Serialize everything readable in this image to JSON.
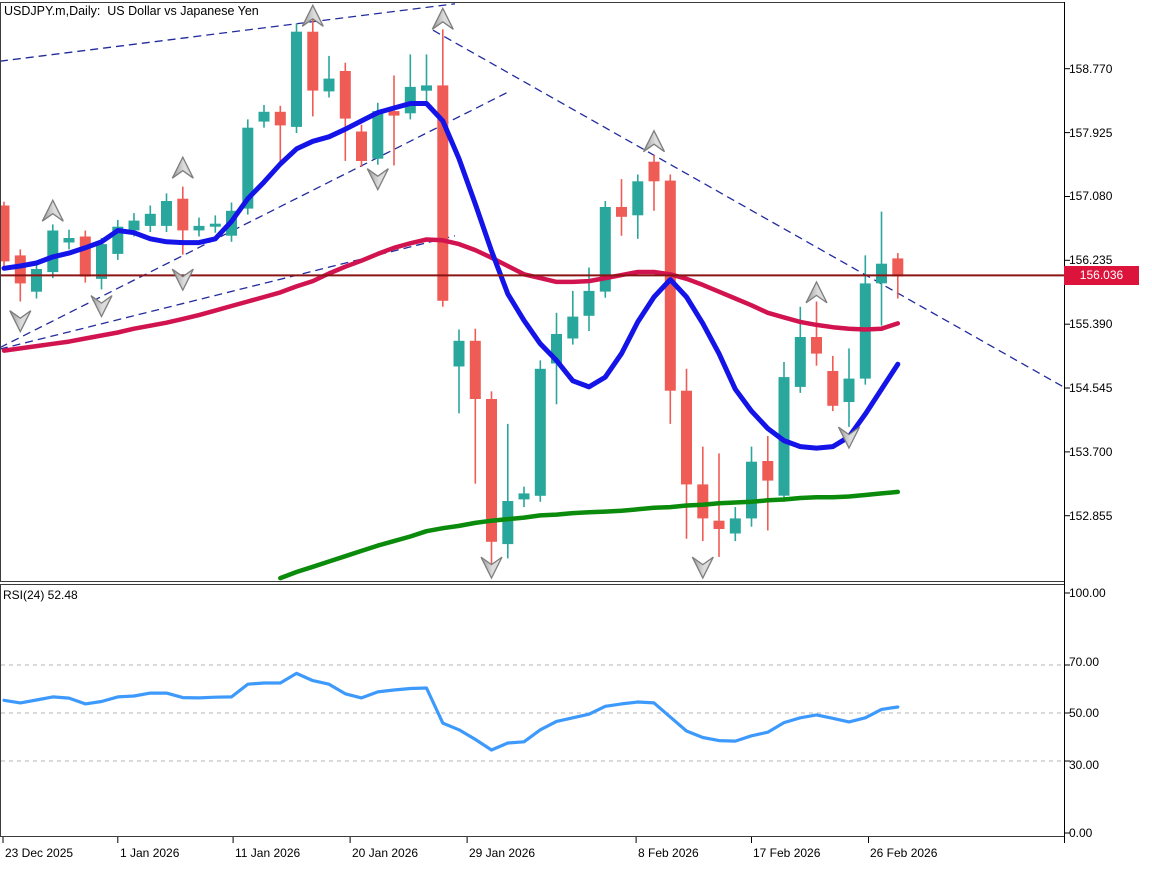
{
  "window": {
    "title": "USDJPY.m,Daily:  US Dollar vs Japanese Yen"
  },
  "colors": {
    "bull": "#2aa79c",
    "bear": "#ef5b55",
    "ma_blue": "#1413e8",
    "ma_red": "#d1144f",
    "ma_green": "#0b8b0b",
    "rsi_line": "#3d9afc",
    "trendline": "#222b9e",
    "price_line": "#8b1414",
    "badge_bg": "#dc143c",
    "grid": "#c4c4c4",
    "border": "#3c3c3c",
    "arrow_fill_light": "#dcdcdc",
    "arrow_fill_dark": "#9a9a9a",
    "arrow_stroke": "#7e7e7e"
  },
  "price_axis": {
    "tick_labels": [
      "158.770",
      "157.925",
      "157.080",
      "156.235",
      "155.390",
      "154.545",
      "153.700",
      "152.855"
    ],
    "tick_prices": [
      158.77,
      157.925,
      157.08,
      156.235,
      155.39,
      154.545,
      153.7,
      152.855
    ],
    "current_price": 156.036,
    "current_price_label": "156.036"
  },
  "date_axis": {
    "labels": [
      "23 Dec 2025",
      "1 Jan 2026",
      "11 Jan 2026",
      "20 Jan 2026",
      "29 Jan 2026",
      "8 Feb 2026",
      "17 Feb 2026",
      "26 Feb 2026"
    ],
    "tick_bars": [
      -0.06,
      7,
      14.1,
      21.3,
      28.5,
      38.9,
      46,
      53.2
    ]
  },
  "rsi_pane": {
    "label": "RSI(24) 52.48",
    "tick_labels": [
      "100.00",
      "70.00",
      "50.00",
      "30.00",
      "0.00"
    ],
    "tick_values": [
      100,
      70,
      50,
      30,
      0
    ]
  },
  "chart_data": [
    {
      "type": "candlestick",
      "title": "USDJPY.m Daily",
      "ylim": [
        152.02,
        159.64
      ],
      "candles": [
        [
          156.96,
          157.01,
          156.15,
          156.22
        ],
        [
          156.3,
          156.38,
          155.69,
          155.93
        ],
        [
          155.82,
          156.19,
          155.73,
          156.12
        ],
        [
          156.08,
          156.71,
          156.0,
          156.63
        ],
        [
          156.47,
          156.64,
          156.38,
          156.53
        ],
        [
          156.55,
          156.63,
          155.94,
          156.02
        ],
        [
          155.99,
          156.53,
          155.85,
          156.45
        ],
        [
          156.32,
          156.77,
          156.24,
          156.68
        ],
        [
          156.63,
          156.86,
          156.55,
          156.76
        ],
        [
          156.69,
          156.96,
          156.61,
          156.85
        ],
        [
          156.69,
          157.12,
          156.61,
          157.02
        ],
        [
          157.05,
          157.21,
          156.31,
          156.63
        ],
        [
          156.63,
          156.8,
          156.55,
          156.69
        ],
        [
          156.68,
          156.83,
          156.6,
          156.72
        ],
        [
          156.56,
          157.0,
          156.48,
          156.89
        ],
        [
          156.92,
          158.1,
          156.84,
          157.99
        ],
        [
          158.07,
          158.29,
          157.99,
          158.2
        ],
        [
          158.2,
          158.28,
          157.54,
          158.02
        ],
        [
          158.0,
          159.37,
          157.92,
          159.26
        ],
        [
          159.26,
          159.51,
          158.14,
          158.48
        ],
        [
          158.47,
          158.94,
          158.39,
          158.64
        ],
        [
          158.74,
          158.85,
          157.55,
          158.11
        ],
        [
          157.94,
          158.03,
          157.47,
          157.55
        ],
        [
          157.58,
          158.32,
          157.5,
          158.21
        ],
        [
          158.21,
          158.68,
          157.49,
          158.15
        ],
        [
          158.18,
          158.96,
          158.1,
          158.53
        ],
        [
          158.48,
          158.96,
          158.31,
          158.55
        ],
        [
          158.55,
          159.29,
          155.62,
          155.7
        ],
        [
          154.83,
          155.32,
          154.21,
          155.17
        ],
        [
          155.17,
          155.33,
          153.28,
          154.4
        ],
        [
          154.4,
          154.5,
          152.11,
          152.51
        ],
        [
          152.48,
          154.07,
          152.29,
          153.05
        ],
        [
          153.07,
          153.24,
          152.97,
          153.15
        ],
        [
          153.12,
          154.91,
          153.04,
          154.8
        ],
        [
          154.87,
          155.54,
          154.33,
          155.26
        ],
        [
          155.2,
          155.83,
          155.12,
          155.49
        ],
        [
          155.5,
          156.14,
          155.3,
          155.83
        ],
        [
          155.82,
          157.02,
          155.74,
          156.94
        ],
        [
          156.94,
          157.31,
          156.56,
          156.81
        ],
        [
          156.83,
          157.37,
          156.52,
          157.28
        ],
        [
          157.54,
          157.63,
          156.89,
          157.28
        ],
        [
          157.29,
          157.37,
          154.07,
          154.51
        ],
        [
          154.51,
          154.8,
          152.55,
          153.27
        ],
        [
          153.27,
          153.77,
          152.52,
          152.82
        ],
        [
          152.79,
          153.68,
          152.31,
          152.68
        ],
        [
          152.62,
          152.97,
          152.52,
          152.82
        ],
        [
          152.82,
          153.77,
          152.71,
          153.57
        ],
        [
          153.58,
          153.91,
          152.66,
          153.32
        ],
        [
          153.12,
          154.89,
          153.04,
          154.69
        ],
        [
          154.56,
          155.62,
          154.48,
          155.22
        ],
        [
          155.22,
          155.69,
          154.84,
          155.0
        ],
        [
          154.77,
          154.97,
          154.24,
          154.31
        ],
        [
          154.36,
          155.07,
          154.03,
          154.67
        ],
        [
          154.67,
          156.3,
          154.59,
          155.93
        ],
        [
          155.93,
          156.88,
          155.37,
          156.19
        ],
        [
          156.26,
          156.33,
          155.73,
          156.02
        ]
      ],
      "series": [
        {
          "name": "ma-fast-blue",
          "values": [
            156.13,
            156.16,
            156.2,
            156.28,
            156.33,
            156.4,
            156.48,
            156.63,
            156.6,
            156.52,
            156.48,
            156.47,
            156.47,
            156.52,
            156.75,
            157.05,
            157.27,
            157.51,
            157.71,
            157.81,
            157.87,
            157.97,
            158.08,
            158.19,
            158.25,
            158.31,
            158.31,
            158.08,
            157.58,
            156.98,
            156.36,
            155.79,
            155.44,
            155.13,
            154.91,
            154.64,
            154.56,
            154.69,
            155.0,
            155.42,
            155.75,
            155.98,
            155.75,
            155.4,
            155.0,
            154.53,
            154.24,
            154.01,
            153.85,
            153.77,
            153.75,
            153.77,
            153.9,
            154.2,
            154.53,
            154.86
          ]
        },
        {
          "name": "ma-mid-red",
          "values": [
            155.04,
            155.07,
            155.1,
            155.13,
            155.16,
            155.2,
            155.24,
            155.28,
            155.33,
            155.37,
            155.41,
            155.46,
            155.51,
            155.57,
            155.63,
            155.69,
            155.75,
            155.81,
            155.89,
            155.96,
            156.06,
            156.15,
            156.23,
            156.32,
            156.4,
            156.46,
            156.51,
            156.5,
            156.45,
            156.37,
            156.27,
            156.16,
            156.05,
            156.0,
            155.95,
            155.95,
            155.96,
            156.0,
            156.04,
            156.08,
            156.08,
            156.05,
            155.99,
            155.91,
            155.82,
            155.73,
            155.64,
            155.54,
            155.48,
            155.42,
            155.38,
            155.35,
            155.33,
            155.32,
            155.33,
            155.4
          ]
        },
        {
          "name": "ma-slow-green",
          "values": [
            null,
            null,
            null,
            null,
            null,
            null,
            null,
            null,
            null,
            null,
            null,
            null,
            null,
            null,
            null,
            null,
            null,
            152.03,
            152.11,
            152.18,
            152.25,
            152.32,
            152.39,
            152.46,
            152.52,
            152.58,
            152.65,
            152.69,
            152.72,
            152.76,
            152.79,
            152.81,
            152.83,
            152.86,
            152.87,
            152.89,
            152.9,
            152.91,
            152.92,
            152.94,
            152.96,
            152.97,
            152.99,
            153.0,
            153.02,
            153.03,
            153.04,
            153.06,
            153.07,
            153.09,
            153.1,
            153.1,
            153.11,
            153.13,
            153.15,
            153.17
          ]
        }
      ],
      "trendlines": [
        {
          "name": "rising-upper",
          "b1": -0.25,
          "p1": 158.87,
          "b2": 27.75,
          "p2": 159.63
        },
        {
          "name": "rising-steep",
          "b1": -0.25,
          "p1": 155.08,
          "b2": 31.1,
          "p2": 158.47
        },
        {
          "name": "rising-lower",
          "b1": -0.25,
          "p1": 155.06,
          "b2": 27.75,
          "p2": 156.56
        },
        {
          "name": "falling-major",
          "b1": 26.4,
          "p1": 159.28,
          "b2": 66.1,
          "p2": 154.45
        }
      ],
      "fractals": {
        "up": [
          {
            "bar": 3,
            "price": 157.03
          },
          {
            "bar": 11,
            "price": 157.6
          },
          {
            "bar": 19,
            "price": 159.61
          },
          {
            "bar": 27,
            "price": 159.57
          },
          {
            "bar": 40,
            "price": 157.95
          },
          {
            "bar": 50,
            "price": 155.95
          }
        ],
        "down": [
          {
            "bar": 1,
            "price": 155.29
          },
          {
            "bar": 6,
            "price": 155.49
          },
          {
            "bar": 11,
            "price": 155.84
          },
          {
            "bar": 23,
            "price": 157.17
          },
          {
            "bar": 30,
            "price": 152.03
          },
          {
            "bar": 43,
            "price": 152.03
          },
          {
            "bar": 52,
            "price": 153.75
          }
        ]
      },
      "price_line": 156.036
    },
    {
      "type": "line",
      "name": "RSI(24)",
      "current_value": 52.48,
      "range": [
        0,
        100
      ],
      "levels": [
        70,
        50,
        30
      ],
      "values": [
        55.3,
        54.2,
        55.4,
        56.7,
        56.2,
        53.8,
        54.8,
        56.7,
        57.1,
        58.3,
        58.3,
        56.4,
        56.3,
        56.6,
        56.7,
        62.0,
        62.5,
        62.5,
        66.5,
        63.5,
        62.0,
        58.0,
        56.3,
        58.8,
        59.6,
        60.2,
        60.4,
        45.8,
        43.0,
        39.0,
        34.6,
        37.5,
        38.0,
        43.0,
        46.5,
        48.0,
        49.5,
        52.8,
        53.8,
        54.6,
        54.2,
        48.3,
        42.5,
        39.8,
        38.5,
        38.3,
        40.5,
        42.0,
        46.0,
        48.0,
        49.2,
        47.8,
        46.3,
        48.0,
        51.5,
        52.48
      ]
    }
  ]
}
